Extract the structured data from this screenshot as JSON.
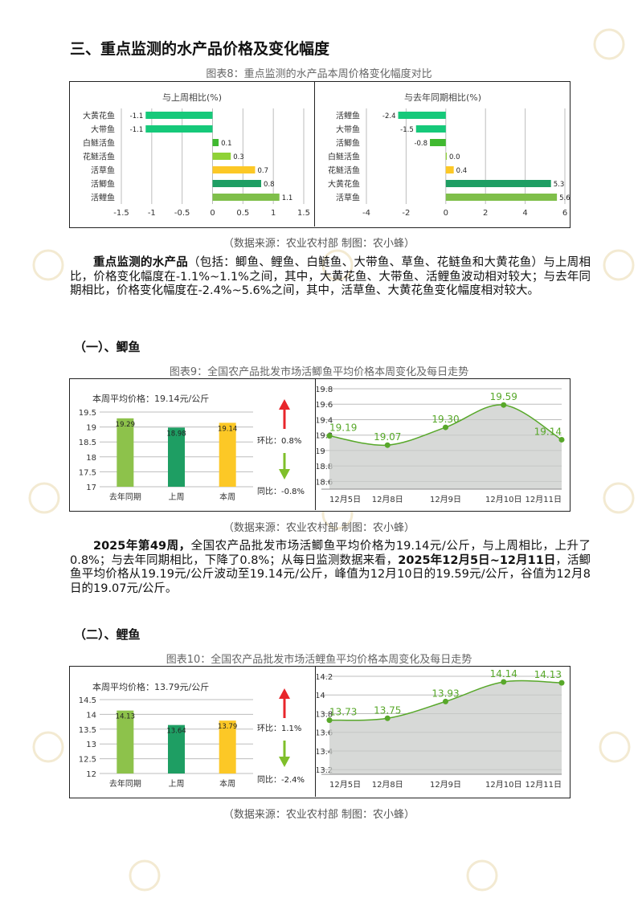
{
  "section_title": "三、重点监测的水产品价格及变化幅度",
  "fig8": {
    "caption": "图表8：重点监测的水产品本周价格变化幅度对比",
    "source": "（数据来源：农业农村部    制图：农小蜂）",
    "left": {
      "title": "与上周相比(%)",
      "categories": [
        "大黄花鱼",
        "大带鱼",
        "白鲢活鱼",
        "花鲢活鱼",
        "活草鱼",
        "活鲫鱼",
        "活鲤鱼"
      ],
      "values": [
        -1.1,
        -1.1,
        0.1,
        0.3,
        0.7,
        0.8,
        1.1
      ],
      "labels": [
        "-1.1",
        "-1.1",
        "0.1",
        "0.3",
        "0.7",
        "0.8",
        "1.1"
      ],
      "ticks": [
        "-1.5",
        "-1",
        "-0.5",
        "0",
        "0.5",
        "1",
        "1.5"
      ],
      "xlim": [
        -1.5,
        1.5
      ],
      "colors": [
        "#16c97a",
        "#16c97a",
        "#40b930",
        "#8fd236",
        "#fcc826",
        "#1e9e63",
        "#7fbf4a"
      ]
    },
    "right": {
      "title": "与去年同期相比(%)",
      "categories": [
        "活鲤鱼",
        "大带鱼",
        "活鲫鱼",
        "白鲢活鱼",
        "花鲢活鱼",
        "大黄花鱼",
        "活草鱼"
      ],
      "values": [
        -2.4,
        -1.5,
        -0.8,
        0.0,
        0.4,
        5.3,
        5.6
      ],
      "labels": [
        "-2.4",
        "-1.5",
        "-0.8",
        "0.0",
        "0.4",
        "5.3",
        "5.6"
      ],
      "ticks": [
        "-4",
        "-2",
        "0",
        "2",
        "4",
        "6"
      ],
      "xlim": [
        -4,
        6
      ],
      "colors": [
        "#16c97a",
        "#16c97a",
        "#40b930",
        "#8fd236",
        "#fcc826",
        "#1e9e63",
        "#7fbf4a"
      ]
    }
  },
  "para1": {
    "bold": "重点监测的水产品",
    "text": "（包括：鲫鱼、鲤鱼、白鲢鱼、大带鱼、草鱼、花鲢鱼和大黄花鱼）与上周相比，价格变化幅度在-1.1%~1.1%之间，其中，大黄花鱼、大带鱼、活鲤鱼波动相对较大；与去年同期相比，价格变化幅度在-2.4%~5.6%之间，其中，活草鱼、大黄花鱼变化幅度相对较大。"
  },
  "sub1": "（一）、鲫鱼",
  "fig9": {
    "caption": "图表9：全国农产品批发市场活鲫鱼平均价格本周变化及每日走势",
    "source": "（数据来源：农业农村部    制图：农小蜂）",
    "avg_label": "本周平均价格：19.14元/公斤",
    "bar": {
      "categories": [
        "去年同期",
        "上周",
        "本周"
      ],
      "values": [
        19.29,
        18.98,
        19.14
      ],
      "labels": [
        "19.29",
        "18.98",
        "19.14"
      ],
      "ticks": [
        "17",
        "17.5",
        "18",
        "18.5",
        "19",
        "19.5"
      ],
      "ylim": [
        17,
        19.5
      ],
      "colors": [
        "#8dc24b",
        "#1e9e63",
        "#fcc826"
      ]
    },
    "hb": "环比：0.8%",
    "tb": "同比：-0.8%",
    "line": {
      "x": [
        "12月5日",
        "12月8日",
        "12月9日",
        "12月10日",
        "12月11日"
      ],
      "values": [
        19.19,
        19.07,
        19.3,
        19.59,
        19.14
      ],
      "labels": [
        "19.19",
        "19.07",
        "19.30",
        "19.59",
        "19.14"
      ],
      "ticks": [
        "18.6",
        "18.8",
        "19",
        "19.2",
        "19.4",
        "19.6",
        "19.8"
      ],
      "ylim": [
        18.5,
        19.8
      ]
    }
  },
  "para2": {
    "b1": "2025年第49周，",
    "t1": "全国农产品批发市场活鲫鱼平均价格为19.14元/公斤，与上周相比，上升了0.8%；与去年同期相比，下降了0.8%；从每日监测数据来看，",
    "b2": "2025年12月5日~12月11日",
    "t2": "，活鲫鱼平均价格从19.19元/公斤波动至19.14元/公斤，峰值为12月10日的19.59元/公斤，谷值为12月8日的19.07元/公斤。"
  },
  "sub2": "（二）、鲤鱼",
  "fig10": {
    "caption": "图表10：全国农产品批发市场活鲤鱼平均价格本周变化及每日走势",
    "source": "（数据来源：农业农村部    制图：农小蜂）",
    "avg_label": "本周平均价格：13.79元/公斤",
    "bar": {
      "categories": [
        "去年同期",
        "上周",
        "本周"
      ],
      "values": [
        14.13,
        13.64,
        13.79
      ],
      "labels": [
        "14.13",
        "13.64",
        "13.79"
      ],
      "ticks": [
        "12",
        "12.5",
        "13",
        "13.5",
        "14",
        "14.5"
      ],
      "ylim": [
        12,
        14.5
      ],
      "colors": [
        "#8dc24b",
        "#1e9e63",
        "#fcc826"
      ]
    },
    "hb": "环比：1.1%",
    "tb": "同比：-2.4%",
    "line": {
      "x": [
        "12月5日",
        "12月8日",
        "12月9日",
        "12月10日",
        "12月11日"
      ],
      "values": [
        13.73,
        13.75,
        13.93,
        14.14,
        14.13
      ],
      "labels": [
        "13.73",
        "13.75",
        "13.93",
        "14.14",
        "14.13"
      ],
      "ticks": [
        "13.2",
        "13.4",
        "13.6",
        "13.8",
        "14",
        "14.2"
      ],
      "ylim": [
        13.15,
        14.2
      ]
    }
  },
  "chart_data": [
    {
      "type": "bar",
      "orientation": "horizontal",
      "title": "与上周相比(%)",
      "categories": [
        "大黄花鱼",
        "大带鱼",
        "白鲢活鱼",
        "花鲢活鱼",
        "活草鱼",
        "活鲫鱼",
        "活鲤鱼"
      ],
      "values": [
        -1.1,
        -1.1,
        0.1,
        0.3,
        0.7,
        0.8,
        1.1
      ],
      "xlim": [
        -1.5,
        1.5
      ]
    },
    {
      "type": "bar",
      "orientation": "horizontal",
      "title": "与去年同期相比(%)",
      "categories": [
        "活鲤鱼",
        "大带鱼",
        "活鲫鱼",
        "白鲢活鱼",
        "花鲢活鱼",
        "大黄花鱼",
        "活草鱼"
      ],
      "values": [
        -2.4,
        -1.5,
        -0.8,
        0.0,
        0.4,
        5.3,
        5.6
      ],
      "xlim": [
        -4,
        6
      ]
    },
    {
      "type": "bar",
      "categories": [
        "去年同期",
        "上周",
        "本周"
      ],
      "values": [
        19.29,
        18.98,
        19.14
      ],
      "ylim": [
        17,
        19.5
      ]
    },
    {
      "type": "area",
      "x": [
        "12月5日",
        "12月8日",
        "12月9日",
        "12月10日",
        "12月11日"
      ],
      "values": [
        19.19,
        19.07,
        19.3,
        19.59,
        19.14
      ],
      "ylim": [
        18.5,
        19.8
      ]
    },
    {
      "type": "bar",
      "categories": [
        "去年同期",
        "上周",
        "本周"
      ],
      "values": [
        14.13,
        13.64,
        13.79
      ],
      "ylim": [
        12,
        14.5
      ]
    },
    {
      "type": "area",
      "x": [
        "12月5日",
        "12月8日",
        "12月9日",
        "12月10日",
        "12月11日"
      ],
      "values": [
        13.73,
        13.75,
        13.93,
        14.14,
        14.13
      ],
      "ylim": [
        13.15,
        14.2
      ]
    }
  ]
}
